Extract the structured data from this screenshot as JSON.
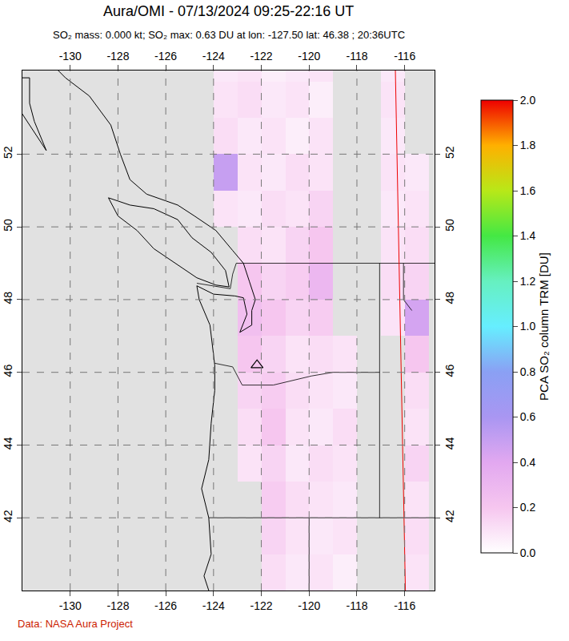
{
  "chart_data": {
    "type": "heatmap",
    "title": "Aura/OMI - 07/13/2024 09:25-22:16 UT",
    "subtitle": "SO₂ mass: 0.000 kt; SO₂ max: 0.63 DU at lon: -127.50 lat: 46.38 ; 20:36UTC",
    "source": "Data: NASA Aura Project",
    "xlim": [
      -132.0,
      -114.75
    ],
    "ylim": [
      40.0,
      54.3
    ],
    "xticks": [
      -130,
      -128,
      -126,
      -124,
      -122,
      -120,
      -118,
      -116
    ],
    "yticks": [
      42,
      44,
      46,
      48,
      50,
      52
    ],
    "grid": true,
    "lon_edges": [
      -125,
      -124,
      -123,
      -122,
      -121,
      -120,
      -119,
      -118,
      -117,
      -116,
      -115
    ],
    "lat_edges": [
      40,
      41,
      42,
      43,
      44,
      45,
      46,
      47,
      48,
      49,
      50,
      51,
      52,
      53,
      54,
      55
    ],
    "cells": [
      [
        null,
        null,
        null,
        0.12,
        0.08,
        0.1,
        0.06,
        null,
        null,
        0.1
      ],
      [
        null,
        null,
        null,
        0.15,
        0.1,
        0.08,
        0.1,
        null,
        null,
        0.12
      ],
      [
        null,
        null,
        null,
        0.18,
        0.12,
        0.1,
        0.08,
        null,
        null,
        0.1
      ],
      [
        null,
        null,
        0.1,
        0.15,
        0.08,
        0.12,
        0.1,
        null,
        null,
        0.15
      ],
      [
        null,
        null,
        0.12,
        0.2,
        0.1,
        0.08,
        0.12,
        null,
        null,
        0.1
      ],
      [
        null,
        null,
        0.15,
        0.18,
        0.12,
        0.1,
        0.08,
        null,
        null,
        0.12
      ],
      [
        null,
        null,
        0.2,
        0.15,
        0.1,
        0.12,
        0.1,
        null,
        null,
        0.2
      ],
      [
        null,
        null,
        0.25,
        0.2,
        0.15,
        0.18,
        null,
        null,
        0.1,
        0.45
      ],
      [
        null,
        null,
        0.2,
        0.15,
        0.18,
        0.3,
        null,
        null,
        0.12,
        0.15
      ],
      [
        null,
        null,
        0.12,
        0.1,
        0.15,
        0.2,
        null,
        null,
        0.1,
        0.12
      ],
      [
        null,
        0.1,
        0.08,
        0.12,
        0.1,
        0.15,
        null,
        null,
        0.08,
        0.1
      ],
      [
        null,
        0.5,
        0.1,
        0.08,
        0.12,
        0.1,
        null,
        null,
        0.1,
        0.08
      ],
      [
        null,
        0.12,
        0.08,
        0.1,
        0.06,
        0.1,
        null,
        null,
        0.08,
        null
      ],
      [
        null,
        0.1,
        0.12,
        0.08,
        0.1,
        0.06,
        null,
        null,
        0.1,
        null
      ],
      [
        null,
        0.08,
        0.1,
        0.06,
        0.08,
        0.1,
        null,
        null,
        0.08,
        null
      ]
    ],
    "colorbar": {
      "title": "PCA SO₂ column TRM [DU]",
      "range": [
        0,
        2
      ],
      "ticks": [
        {
          "value": 0,
          "label": "0.0"
        },
        {
          "value": 0.2,
          "label": "0.2"
        },
        {
          "value": 0.4,
          "label": "0.4"
        },
        {
          "value": 0.6,
          "label": "0.6"
        },
        {
          "value": 0.8,
          "label": "0.8"
        },
        {
          "value": 1,
          "label": "1.0"
        },
        {
          "value": 1.2,
          "label": "1.2"
        },
        {
          "value": 1.4,
          "label": "1.4"
        },
        {
          "value": 1.6,
          "label": "1.6"
        },
        {
          "value": 1.8,
          "label": "1.8"
        },
        {
          "value": 2,
          "label": "2.0"
        }
      ]
    },
    "marker": "triangle-up-open",
    "volcano": {
      "lon": -122.18,
      "lat": 46.2
    },
    "coastlines": [
      {
        "lon": [
          -124.2,
          -124.4,
          -124.1,
          -124.2,
          -124.5,
          -124.2,
          -124.1,
          -123.95,
          -123.95,
          -124.05,
          -124.15,
          -124.6,
          -124.7,
          -124.0,
          -123.1,
          -122.75,
          -122.6,
          -122.9,
          -122.4,
          -122.4,
          -122.25,
          -122.5,
          -122.75,
          -123.2,
          -123.9,
          -124.8,
          -125.5,
          -126.8,
          -127.5,
          -127.9,
          -128.3,
          -129.2,
          -130.2,
          -130.5
        ],
        "lat": [
          40.0,
          40.4,
          41.0,
          42.0,
          42.8,
          43.6,
          44.6,
          45.5,
          46.2,
          46.7,
          47.3,
          48.0,
          48.38,
          48.15,
          48.1,
          48.05,
          47.6,
          47.1,
          47.3,
          47.7,
          48.0,
          48.5,
          49.0,
          49.35,
          49.9,
          50.3,
          50.6,
          50.9,
          51.3,
          52.0,
          52.8,
          53.6,
          54.1,
          54.3
        ]
      },
      {
        "lon": [
          -123.35,
          -123.9,
          -124.7,
          -125.5,
          -126.5,
          -127.2,
          -128.0,
          -128.4,
          -127.5,
          -126.5,
          -125.5,
          -124.9,
          -124.1,
          -123.5,
          -123.35
        ],
        "lat": [
          48.35,
          48.4,
          48.6,
          48.95,
          49.4,
          49.9,
          50.3,
          50.8,
          50.6,
          50.5,
          50.2,
          49.7,
          49.3,
          48.8,
          48.35
        ]
      },
      {
        "lon": [
          -131.0,
          -131.6,
          -132.2,
          -132.2,
          -131.7,
          -131.7,
          -131.5,
          -131.0
        ],
        "lat": [
          52.1,
          52.7,
          53.3,
          54.1,
          54.1,
          53.4,
          52.9,
          52.1
        ]
      }
    ],
    "borders": [
      {
        "lon": [
          -124.7,
          -123.3,
          -123.2,
          -123.05,
          -114.75
        ],
        "lat": [
          48.45,
          48.3,
          48.7,
          49.0,
          49.0
        ]
      },
      {
        "lon": [
          -123.95,
          -123.2,
          -122.8,
          -121.5,
          -119.9,
          -119.0,
          -117.05
        ],
        "lat": [
          46.25,
          46.15,
          45.65,
          45.65,
          45.9,
          46.0,
          46.0
        ]
      },
      {
        "lon": [
          -117.05,
          -117.05
        ],
        "lat": [
          49.0,
          42.0
        ]
      },
      {
        "lon": [
          -124.2,
          -114.75
        ],
        "lat": [
          42.0,
          42.0
        ]
      },
      {
        "lon": [
          -120.0,
          -120.0
        ],
        "lat": [
          42.0,
          40.0
        ]
      },
      {
        "lon": [
          -116.05,
          -116.05,
          -115.7
        ],
        "lat": [
          49.0,
          48.0,
          47.7
        ]
      }
    ],
    "red_line": {
      "lon": [
        -116.39,
        -115.97
      ],
      "lat": [
        54.3,
        40.0
      ]
    }
  }
}
